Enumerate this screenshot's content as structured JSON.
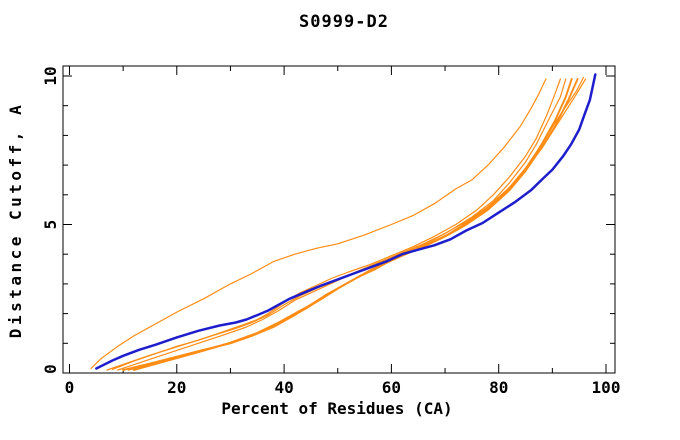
{
  "page": {
    "background": "#ffffff"
  },
  "chart_data": {
    "type": "line",
    "title": "S0999-D2",
    "xlabel": "Percent of Residues (CA)",
    "ylabel": "Distance Cutoff, A",
    "xlim": [
      0,
      100
    ],
    "ylim": [
      0,
      10
    ],
    "grid": false,
    "legend": "none",
    "xticks_major": [
      0,
      20,
      40,
      60,
      80,
      100
    ],
    "xticks_minor": [
      10,
      30,
      50,
      70,
      90
    ],
    "yticks_major": [
      0,
      5,
      10
    ],
    "yticks_minor": [
      1,
      2,
      3,
      4,
      6,
      7,
      8,
      9
    ],
    "xtick_labels": [
      "0",
      "20",
      "40",
      "60",
      "80",
      "100"
    ],
    "ytick_labels": [
      "0",
      "5",
      "10"
    ],
    "colors": {
      "axis": "#000000",
      "text": "#000000",
      "blue_curve": "#1e1ecd",
      "orange_curve": "#ff8c14"
    },
    "series": [
      {
        "name": "orange-model-1",
        "color": "#ff8c14",
        "width": 1.2,
        "points": [
          [
            4,
            0.15
          ],
          [
            6,
            0.5
          ],
          [
            9,
            0.9
          ],
          [
            12,
            1.25
          ],
          [
            16,
            1.65
          ],
          [
            20,
            2.05
          ],
          [
            25,
            2.5
          ],
          [
            30,
            3.0
          ],
          [
            34,
            3.35
          ],
          [
            38,
            3.75
          ],
          [
            42,
            4.0
          ],
          [
            46,
            4.2
          ],
          [
            50,
            4.35
          ],
          [
            55,
            4.65
          ],
          [
            60,
            5.0
          ],
          [
            64,
            5.3
          ],
          [
            68,
            5.7
          ],
          [
            72,
            6.2
          ],
          [
            75,
            6.5
          ],
          [
            78,
            7.0
          ],
          [
            81,
            7.6
          ],
          [
            84,
            8.3
          ],
          [
            86,
            8.9
          ],
          [
            87.5,
            9.4
          ],
          [
            88.8,
            9.9
          ]
        ]
      },
      {
        "name": "orange-model-2",
        "color": "#ff8c14",
        "width": 1.2,
        "points": [
          [
            8,
            0.12
          ],
          [
            12,
            0.4
          ],
          [
            16,
            0.65
          ],
          [
            20,
            0.9
          ],
          [
            24,
            1.1
          ],
          [
            28,
            1.35
          ],
          [
            32,
            1.6
          ],
          [
            35,
            1.8
          ],
          [
            37,
            2.0
          ],
          [
            39,
            2.25
          ],
          [
            41,
            2.5
          ],
          [
            43,
            2.7
          ],
          [
            46,
            2.95
          ],
          [
            49,
            3.2
          ],
          [
            52,
            3.4
          ],
          [
            56,
            3.65
          ],
          [
            60,
            3.95
          ],
          [
            64,
            4.25
          ],
          [
            68,
            4.6
          ],
          [
            72,
            5.0
          ],
          [
            76,
            5.5
          ],
          [
            79,
            6.0
          ],
          [
            82,
            6.6
          ],
          [
            85,
            7.3
          ],
          [
            87,
            7.9
          ],
          [
            89,
            8.7
          ],
          [
            90.5,
            9.4
          ],
          [
            91.5,
            9.9
          ]
        ]
      },
      {
        "name": "orange-model-3",
        "color": "#ff8c14",
        "width": 1.2,
        "points": [
          [
            9,
            0.1
          ],
          [
            14,
            0.4
          ],
          [
            19,
            0.7
          ],
          [
            24,
            1.0
          ],
          [
            29,
            1.3
          ],
          [
            33,
            1.55
          ],
          [
            36,
            1.8
          ],
          [
            39,
            2.1
          ],
          [
            42,
            2.45
          ],
          [
            45,
            2.7
          ],
          [
            48,
            2.95
          ],
          [
            51,
            3.2
          ],
          [
            55,
            3.5
          ],
          [
            59,
            3.8
          ],
          [
            63,
            4.1
          ],
          [
            67,
            4.4
          ],
          [
            71,
            4.8
          ],
          [
            75,
            5.25
          ],
          [
            79,
            5.8
          ],
          [
            82,
            6.4
          ],
          [
            85,
            7.1
          ],
          [
            87,
            7.7
          ],
          [
            89.5,
            8.6
          ],
          [
            91.5,
            9.3
          ],
          [
            92.5,
            9.9
          ]
        ]
      },
      {
        "name": "orange-model-4",
        "color": "#ff8c14",
        "width": 1.9,
        "points": [
          [
            10,
            0.1
          ],
          [
            15,
            0.32
          ],
          [
            20,
            0.55
          ],
          [
            25,
            0.78
          ],
          [
            30,
            1.0
          ],
          [
            34,
            1.25
          ],
          [
            38,
            1.55
          ],
          [
            42,
            1.95
          ],
          [
            45,
            2.3
          ],
          [
            48,
            2.65
          ],
          [
            51,
            2.95
          ],
          [
            54,
            3.25
          ],
          [
            57,
            3.5
          ],
          [
            60,
            3.8
          ],
          [
            63,
            4.05
          ],
          [
            67,
            4.35
          ],
          [
            71,
            4.7
          ],
          [
            75,
            5.15
          ],
          [
            79,
            5.7
          ],
          [
            83,
            6.4
          ],
          [
            86,
            7.1
          ],
          [
            88,
            7.7
          ],
          [
            90.5,
            8.5
          ],
          [
            92.5,
            9.3
          ],
          [
            93.6,
            9.9
          ]
        ]
      },
      {
        "name": "orange-model-5",
        "color": "#ff8c14",
        "width": 1.9,
        "points": [
          [
            12,
            0.1
          ],
          [
            18,
            0.4
          ],
          [
            24,
            0.7
          ],
          [
            30,
            1.02
          ],
          [
            35,
            1.35
          ],
          [
            39,
            1.7
          ],
          [
            43,
            2.1
          ],
          [
            47,
            2.5
          ],
          [
            50,
            2.85
          ],
          [
            53,
            3.15
          ],
          [
            56,
            3.45
          ],
          [
            59,
            3.7
          ],
          [
            62,
            3.95
          ],
          [
            66,
            4.25
          ],
          [
            70,
            4.6
          ],
          [
            74,
            5.0
          ],
          [
            78,
            5.5
          ],
          [
            82,
            6.15
          ],
          [
            85,
            6.8
          ],
          [
            88,
            7.6
          ],
          [
            90.5,
            8.3
          ],
          [
            93,
            9.2
          ],
          [
            94.7,
            9.9
          ]
        ]
      },
      {
        "name": "orange-model-6",
        "color": "#ff8c14",
        "width": 1.2,
        "points": [
          [
            11,
            0.1
          ],
          [
            17,
            0.38
          ],
          [
            23,
            0.65
          ],
          [
            29,
            0.95
          ],
          [
            34,
            1.25
          ],
          [
            39,
            1.65
          ],
          [
            44,
            2.15
          ],
          [
            48,
            2.6
          ],
          [
            52,
            3.05
          ],
          [
            55,
            3.35
          ],
          [
            58,
            3.65
          ],
          [
            61,
            3.9
          ],
          [
            65,
            4.2
          ],
          [
            69,
            4.5
          ],
          [
            73,
            4.95
          ],
          [
            77,
            5.45
          ],
          [
            81,
            6.05
          ],
          [
            85,
            6.85
          ],
          [
            88,
            7.55
          ],
          [
            91,
            8.4
          ],
          [
            94,
            9.25
          ],
          [
            96.2,
            9.9
          ]
        ]
      },
      {
        "name": "orange-model-7",
        "color": "#ff8c14",
        "width": 1.2,
        "points": [
          [
            7,
            0.1
          ],
          [
            11,
            0.35
          ],
          [
            15,
            0.6
          ],
          [
            19,
            0.82
          ],
          [
            23,
            1.05
          ],
          [
            27,
            1.28
          ],
          [
            31,
            1.5
          ],
          [
            34,
            1.7
          ],
          [
            37,
            1.95
          ],
          [
            40,
            2.3
          ],
          [
            43,
            2.6
          ],
          [
            46,
            2.85
          ],
          [
            50,
            3.15
          ],
          [
            54,
            3.45
          ],
          [
            58,
            3.75
          ],
          [
            62,
            4.05
          ],
          [
            66,
            4.35
          ],
          [
            70,
            4.7
          ],
          [
            74,
            5.1
          ],
          [
            78,
            5.6
          ],
          [
            82,
            6.25
          ],
          [
            85,
            6.9
          ],
          [
            88,
            7.7
          ],
          [
            91.5,
            8.7
          ],
          [
            94.5,
            9.5
          ],
          [
            95.8,
            9.95
          ]
        ]
      },
      {
        "name": "blue-model",
        "color": "#1e1ecd",
        "width": 2.5,
        "points": [
          [
            5,
            0.15
          ],
          [
            8,
            0.42
          ],
          [
            10,
            0.58
          ],
          [
            13,
            0.78
          ],
          [
            16,
            0.95
          ],
          [
            20,
            1.2
          ],
          [
            24,
            1.42
          ],
          [
            28,
            1.6
          ],
          [
            31,
            1.7
          ],
          [
            33,
            1.8
          ],
          [
            35,
            1.95
          ],
          [
            37,
            2.1
          ],
          [
            39,
            2.3
          ],
          [
            41,
            2.5
          ],
          [
            43,
            2.65
          ],
          [
            45,
            2.8
          ],
          [
            47,
            2.95
          ],
          [
            50,
            3.15
          ],
          [
            53,
            3.35
          ],
          [
            56,
            3.55
          ],
          [
            59,
            3.75
          ],
          [
            62,
            4.0
          ],
          [
            65,
            4.15
          ],
          [
            68,
            4.3
          ],
          [
            71,
            4.5
          ],
          [
            74,
            4.8
          ],
          [
            77,
            5.05
          ],
          [
            80,
            5.4
          ],
          [
            83,
            5.75
          ],
          [
            86,
            6.15
          ],
          [
            88,
            6.5
          ],
          [
            90,
            6.85
          ],
          [
            92,
            7.3
          ],
          [
            93.5,
            7.7
          ],
          [
            95,
            8.2
          ],
          [
            96,
            8.7
          ],
          [
            97,
            9.2
          ],
          [
            97.6,
            9.7
          ],
          [
            98,
            10.05
          ]
        ]
      }
    ]
  }
}
